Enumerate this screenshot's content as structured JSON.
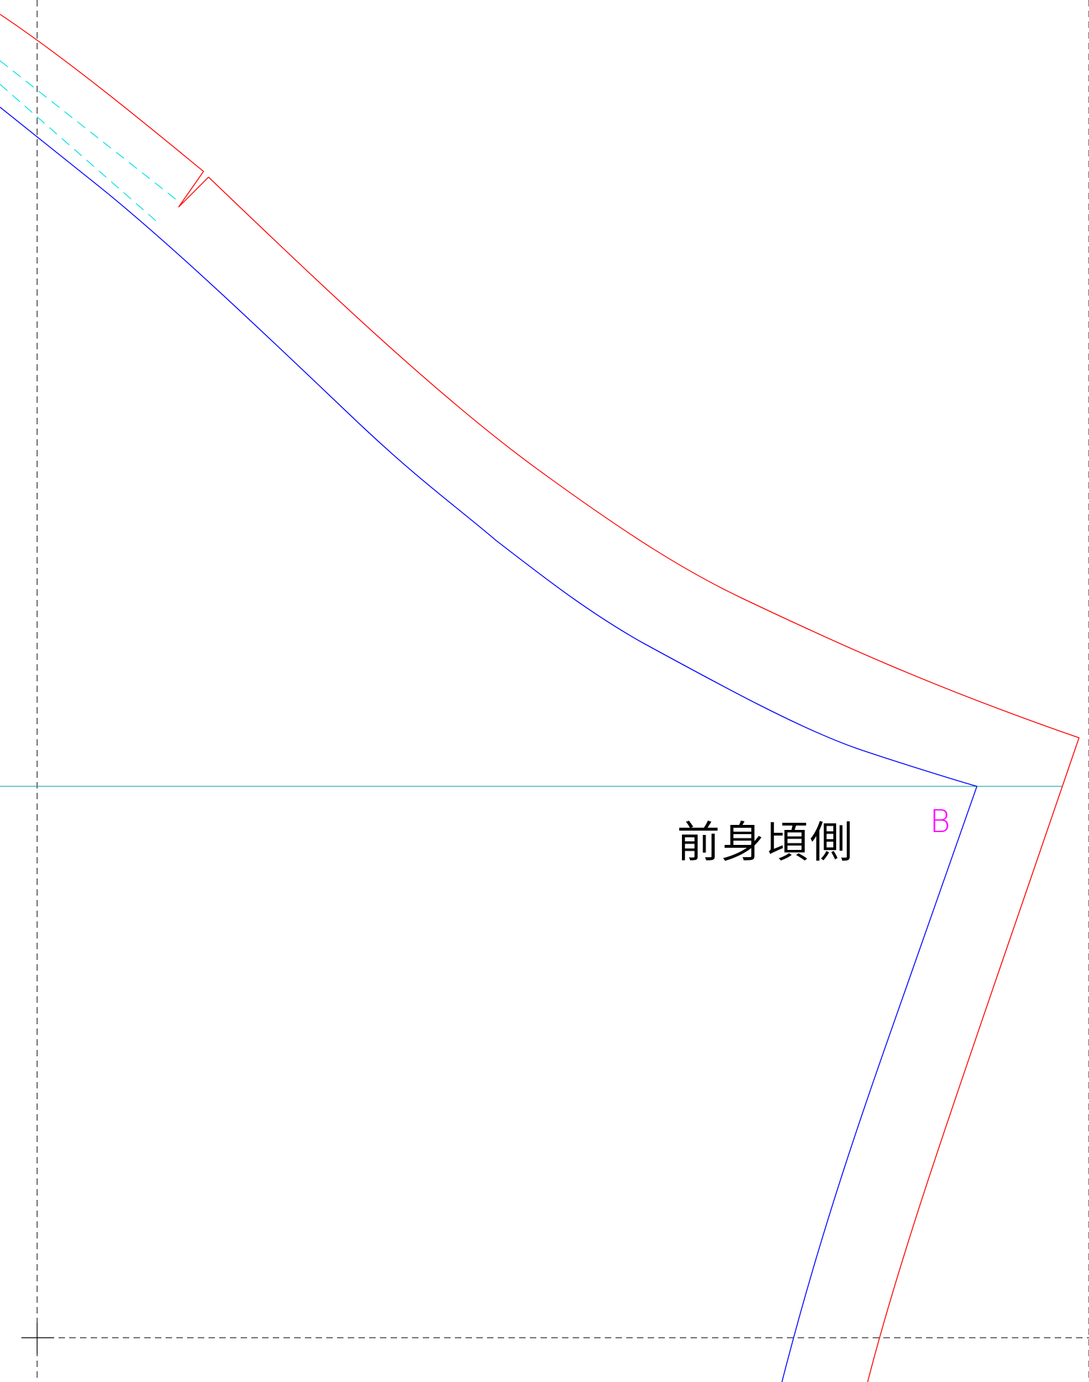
{
  "pattern": {
    "piece_label": "前身頃側",
    "point_label": "B"
  },
  "colors": {
    "background": "#ffffff",
    "cut_line": "#ff0000",
    "seam_line": "#0000ff",
    "guide_line": "#00a0a0",
    "dart_line": "#00e0e0",
    "point_label": "#ff00ff",
    "text": "#000000",
    "page_boundary": "#000000"
  }
}
